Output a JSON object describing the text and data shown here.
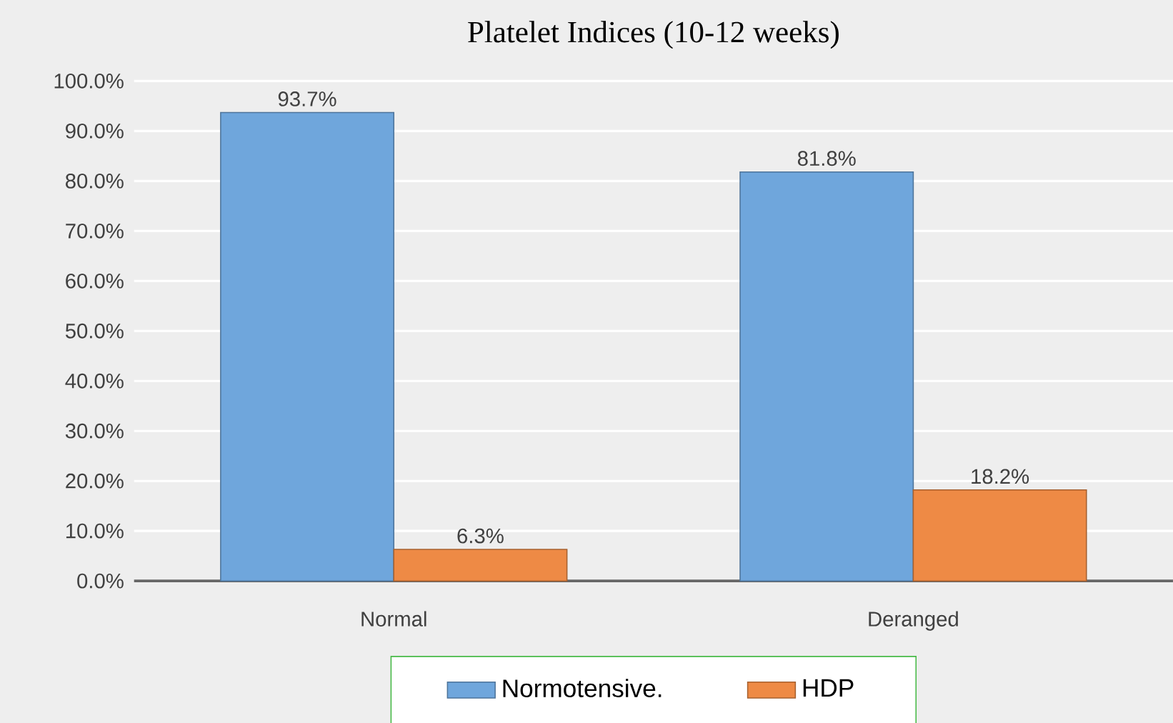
{
  "chart_data": {
    "type": "bar",
    "title": "Platelet Indices (10-12 weeks)",
    "categories": [
      "Normal",
      "Deranged"
    ],
    "series": [
      {
        "name": "Normotensive.",
        "color": "#6fa6dc",
        "values": [
          93.7,
          81.8
        ],
        "value_labels": [
          "93.7%",
          "81.8%"
        ]
      },
      {
        "name": "HDP",
        "color": "#ee8a45",
        "values": [
          6.3,
          18.2
        ],
        "value_labels": [
          "6.3%",
          "18.2%"
        ]
      }
    ],
    "ylim": [
      0,
      100
    ],
    "yticks": [
      {
        "value": 0,
        "label": "0.0%"
      },
      {
        "value": 10,
        "label": "10.0%"
      },
      {
        "value": 20,
        "label": "20.0%"
      },
      {
        "value": 30,
        "label": "30.0%"
      },
      {
        "value": 40,
        "label": "40.0%"
      },
      {
        "value": 50,
        "label": "50.0%"
      },
      {
        "value": 60,
        "label": "60.0%"
      },
      {
        "value": 70,
        "label": "70.0%"
      },
      {
        "value": 80,
        "label": "80.0%"
      },
      {
        "value": 90,
        "label": "90.0%"
      },
      {
        "value": 100,
        "label": "100.0%"
      }
    ],
    "grid": "y",
    "legend": "bottom"
  }
}
